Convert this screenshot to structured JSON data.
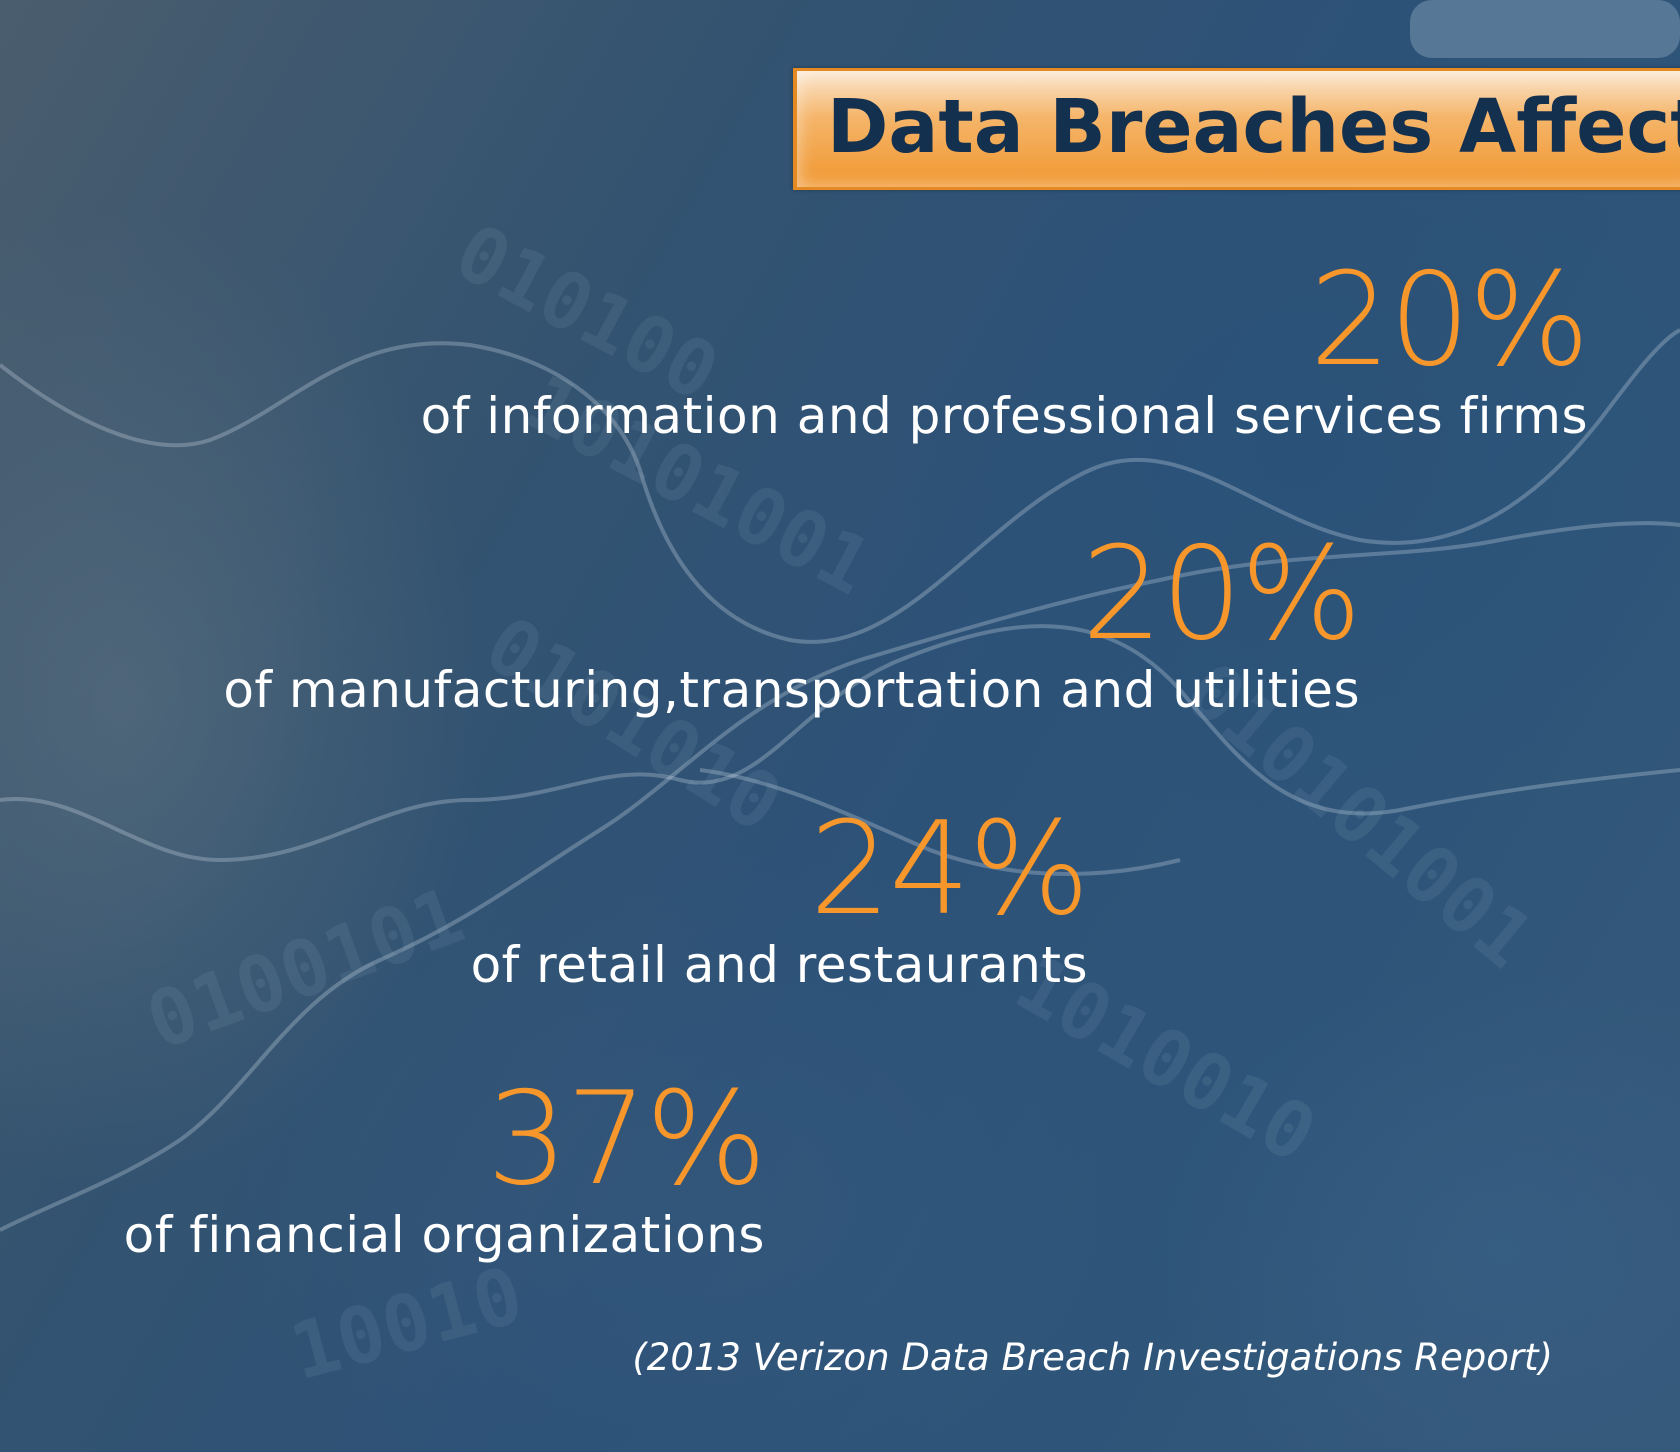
{
  "title": "Data Breaches Affect:",
  "stats": [
    {
      "percent": "20%",
      "description": "of information and professional services firms"
    },
    {
      "percent": "20%",
      "description": "of manufacturing,transportation and utilities"
    },
    {
      "percent": "24%",
      "description": "of retail and restaurants"
    },
    {
      "percent": "37%",
      "description": "of financial organizations"
    }
  ],
  "citation": "(2013 Verizon Data Breach Investigations Report)",
  "colors": {
    "accent": "#f6962b",
    "title_text": "#14304f",
    "background": "#2f4e6c",
    "text": "#ffffff"
  }
}
